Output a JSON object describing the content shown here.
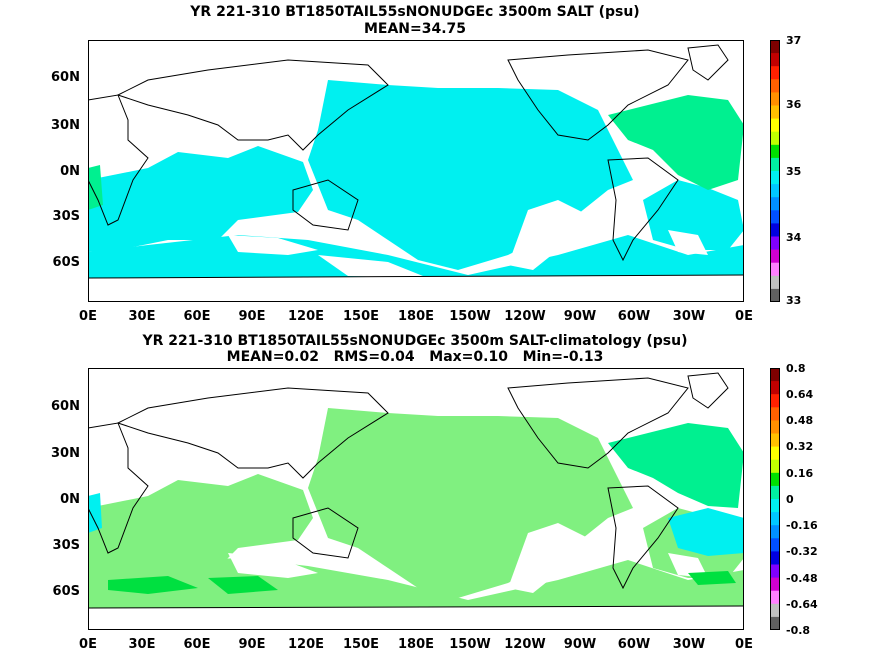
{
  "panel1": {
    "title": "YR 221-310 BT1850TAIL55sNONUDGEc 3500m SALT (psu)",
    "subtitle": "MEAN=34.75",
    "colorbar_labels": [
      "37",
      "36",
      "35",
      "34",
      "33"
    ]
  },
  "panel2": {
    "title": "YR 221-310 BT1850TAIL55sNONUDGEc 3500m SALT-climatology (psu)",
    "subtitle": "MEAN=0.02   RMS=0.04   Max=0.10   Min=-0.13",
    "colorbar_labels": [
      "0.8",
      "0.64",
      "0.48",
      "0.32",
      "0.16",
      "0",
      "-0.16",
      "-0.32",
      "-0.48",
      "-0.64",
      "-0.8"
    ]
  },
  "lat_labels": [
    "60N",
    "30N",
    "0N",
    "30S",
    "60S"
  ],
  "lon_labels": [
    "0E",
    "30E",
    "60E",
    "90E",
    "120E",
    "150E",
    "180E",
    "150W",
    "120W",
    "90W",
    "60W",
    "30W",
    "0E"
  ],
  "colors": {
    "cyan": "#00f0f0",
    "light_green": "#80f080",
    "green": "#00e060",
    "teal_green": "#00f090",
    "blue": "#00a0ff"
  },
  "colorbar_colors_top": [
    "#7f0000",
    "#c00000",
    "#ff2000",
    "#ff6000",
    "#ff9000",
    "#ffc000",
    "#ffff00",
    "#c0ff00",
    "#00e000",
    "#00f0a0",
    "#00f0f0",
    "#00c8ff",
    "#0090ff",
    "#0050ff",
    "#0000e0",
    "#8000ff",
    "#d000d0",
    "#ff80ff",
    "#c0c0c0",
    "#606060"
  ]
}
